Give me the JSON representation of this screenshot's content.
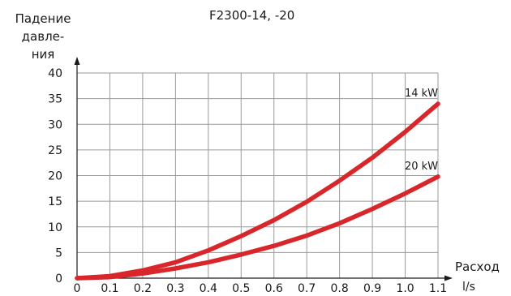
{
  "chart_data": {
    "type": "line",
    "title": "F2300-14, -20",
    "ylabel_lines": [
      "Падение",
      "давле-",
      "ния"
    ],
    "xlabel": "Расход",
    "xunit": "l/s",
    "xlim": [
      0,
      1.1
    ],
    "ylim": [
      0,
      40
    ],
    "xticks": [
      "0",
      "0.1",
      "0.2",
      "0.3",
      "0.4",
      "0.5",
      "0.6",
      "0.7",
      "0.8",
      "0.9",
      "1.0",
      "1.1"
    ],
    "yticks": [
      "0",
      "5",
      "10",
      "15",
      "20",
      "25",
      "30",
      "35",
      "40"
    ],
    "grid": true,
    "series": [
      {
        "name": "14 kW",
        "color": "#d9262b",
        "x": [
          0,
          0.1,
          0.2,
          0.3,
          0.4,
          0.5,
          0.6,
          0.7,
          0.8,
          0.9,
          1.0,
          1.1
        ],
        "y": [
          0,
          0.4,
          1.5,
          3.1,
          5.4,
          8.2,
          11.3,
          14.9,
          19.0,
          23.5,
          28.5,
          34.0
        ]
      },
      {
        "name": "20 kW",
        "color": "#d9262b",
        "x": [
          0,
          0.1,
          0.2,
          0.3,
          0.4,
          0.5,
          0.6,
          0.7,
          0.8,
          0.9,
          1.0,
          1.1
        ],
        "y": [
          0,
          0.2,
          0.9,
          1.9,
          3.1,
          4.6,
          6.3,
          8.3,
          10.7,
          13.5,
          16.5,
          19.8
        ]
      }
    ]
  }
}
